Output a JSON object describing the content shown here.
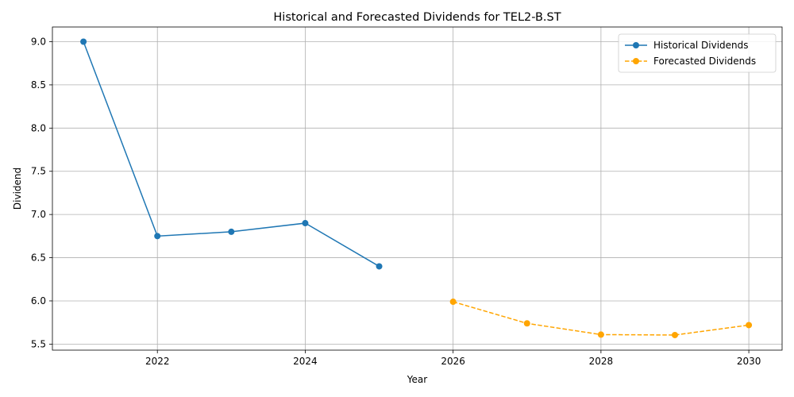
{
  "chart_data": {
    "type": "line",
    "title": "Historical and Forecasted Dividends for TEL2-B.ST",
    "xlabel": "Year",
    "ylabel": "Dividend",
    "xlim": [
      2020.58,
      2030.45
    ],
    "ylim": [
      5.43,
      9.17
    ],
    "xticks": [
      2022,
      2024,
      2026,
      2028,
      2030
    ],
    "xtick_labels": [
      "2022",
      "2024",
      "2026",
      "2028",
      "2030"
    ],
    "yticks": [
      5.5,
      6.0,
      6.5,
      7.0,
      7.5,
      8.0,
      8.5,
      9.0
    ],
    "ytick_labels": [
      "5.5",
      "6.0",
      "6.5",
      "7.0",
      "7.5",
      "8.0",
      "8.5",
      "9.0"
    ],
    "grid": true,
    "legend_position": "top-right",
    "series": [
      {
        "name": "Historical Dividends",
        "color": "#1f77b4",
        "linestyle": "solid",
        "marker": "circle",
        "x": [
          2021,
          2022,
          2023,
          2024,
          2025
        ],
        "y": [
          9.0,
          6.75,
          6.8,
          6.9,
          6.4
        ]
      },
      {
        "name": "Forecasted Dividends",
        "color": "#ffa500",
        "linestyle": "dashed",
        "marker": "circle",
        "x": [
          2026,
          2027,
          2028,
          2029,
          2030
        ],
        "y": [
          5.99,
          5.74,
          5.61,
          5.605,
          5.72
        ]
      }
    ]
  }
}
